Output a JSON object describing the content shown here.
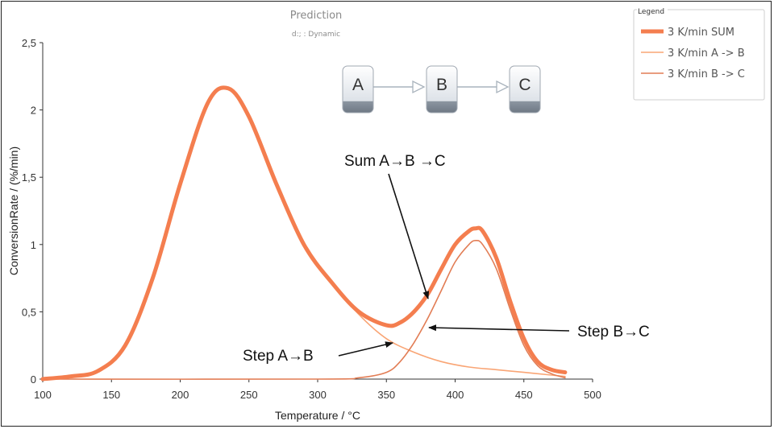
{
  "chart_data": {
    "type": "line",
    "title": "Prediction",
    "subtitle": "d:; : Dynamic",
    "xlabel": "Temperature / °C",
    "ylabel": "ConversionRate / (%/min)",
    "xlim": [
      100,
      500
    ],
    "ylim": [
      0,
      2.5
    ],
    "xticks": [
      "100",
      "150",
      "200",
      "250",
      "300",
      "350",
      "400",
      "450",
      "500"
    ],
    "yticks": [
      "0",
      "0,5",
      "1",
      "1,5",
      "2",
      "2,5"
    ],
    "grid": false,
    "legend_position": "top-right",
    "legend_title": "Legend",
    "series": [
      {
        "name": "3 K/min SUM",
        "color": "#f47e4f",
        "x": [
          100,
          120,
          140,
          160,
          180,
          200,
          220,
          235,
          250,
          270,
          290,
          310,
          330,
          350,
          360,
          370,
          380,
          390,
          400,
          410,
          415,
          420,
          430,
          440,
          450,
          460,
          470,
          480
        ],
        "y": [
          0.0,
          0.02,
          0.06,
          0.25,
          0.75,
          1.45,
          2.05,
          2.16,
          1.95,
          1.45,
          1.0,
          0.72,
          0.5,
          0.4,
          0.42,
          0.5,
          0.63,
          0.82,
          1.0,
          1.1,
          1.12,
          1.1,
          0.9,
          0.58,
          0.3,
          0.13,
          0.07,
          0.05
        ]
      },
      {
        "name": "3 K/min A -> B",
        "color": "#f9a575",
        "x": [
          100,
          120,
          140,
          160,
          180,
          200,
          220,
          235,
          250,
          270,
          290,
          310,
          330,
          350,
          370,
          390,
          410,
          430,
          450,
          470,
          480
        ],
        "y": [
          0.0,
          0.02,
          0.06,
          0.25,
          0.75,
          1.45,
          2.05,
          2.15,
          1.95,
          1.45,
          1.0,
          0.72,
          0.48,
          0.3,
          0.2,
          0.13,
          0.09,
          0.07,
          0.05,
          0.03,
          0.02
        ]
      },
      {
        "name": "3 K/min B -> C",
        "color": "#e27d55",
        "x": [
          100,
          300,
          330,
          350,
          360,
          370,
          380,
          390,
          400,
          410,
          415,
          420,
          430,
          440,
          450,
          460,
          470,
          480
        ],
        "y": [
          0.0,
          0.0,
          0.01,
          0.05,
          0.13,
          0.27,
          0.45,
          0.66,
          0.87,
          1.0,
          1.03,
          1.0,
          0.82,
          0.52,
          0.25,
          0.1,
          0.04,
          0.01
        ]
      }
    ],
    "annotations": [
      "Sum A→B →C",
      "Step B→C",
      "Step A→B"
    ]
  },
  "scheme": {
    "nodes": [
      "A",
      "B",
      "C"
    ]
  }
}
